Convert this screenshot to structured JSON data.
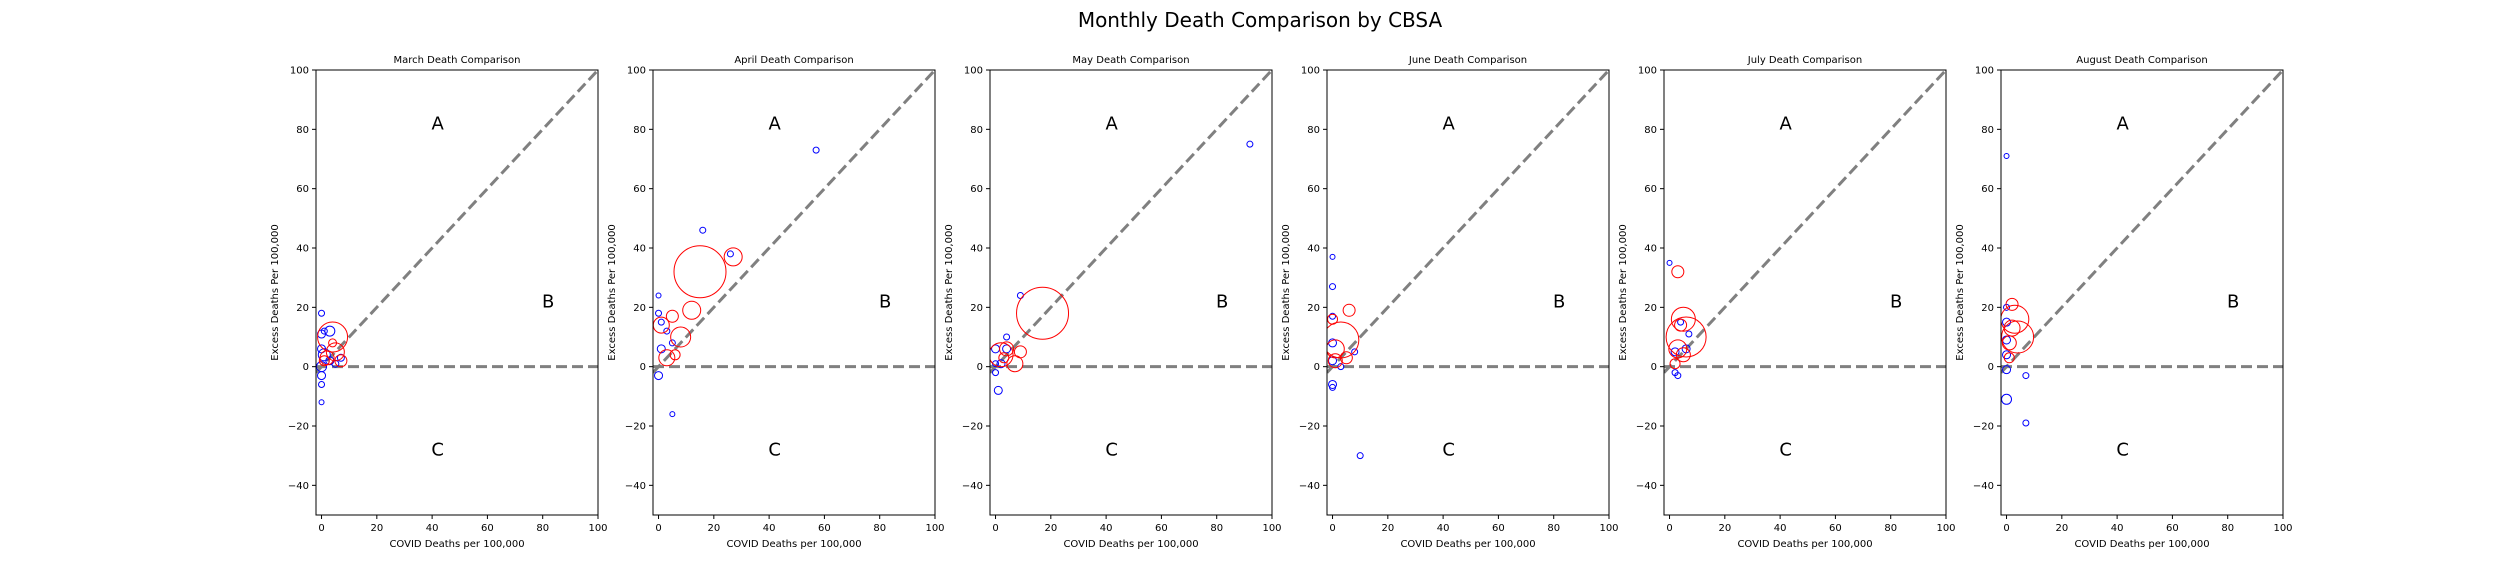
{
  "figure": {
    "suptitle": "Monthly Death Comparison by CBSA"
  },
  "chart_data": [
    {
      "type": "scatter",
      "title": "March Death Comparison",
      "xlabel": "COVID Deaths per 100,000",
      "ylabel": "Excess Deaths Per 100,000",
      "xlim": [
        -2,
        100
      ],
      "ylim": [
        -50,
        100
      ],
      "xticks": [
        0,
        20,
        40,
        60,
        80,
        100
      ],
      "yticks": [
        -40,
        -20,
        0,
        20,
        40,
        60,
        80,
        100
      ],
      "region_labels": [
        {
          "text": "A",
          "x": 42,
          "y": 82
        },
        {
          "text": "B",
          "x": 82,
          "y": 22
        },
        {
          "text": "C",
          "x": 42,
          "y": -28
        }
      ],
      "reference_lines": [
        "y = x",
        "y = 0"
      ],
      "grid": false,
      "points": [
        {
          "x": 0,
          "y": 18,
          "r": 3,
          "color": "blue"
        },
        {
          "x": 0,
          "y": 11,
          "r": 4,
          "color": "blue"
        },
        {
          "x": 1,
          "y": 12,
          "r": 3,
          "color": "blue"
        },
        {
          "x": 3,
          "y": 12,
          "r": 5,
          "color": "blue"
        },
        {
          "x": 0,
          "y": 6,
          "r": 4,
          "color": "blue"
        },
        {
          "x": 1,
          "y": 4,
          "r": 6,
          "color": "blue"
        },
        {
          "x": 0,
          "y": 0,
          "r": 5,
          "color": "blue"
        },
        {
          "x": 0,
          "y": -3,
          "r": 4,
          "color": "blue"
        },
        {
          "x": 0,
          "y": -6,
          "r": 3,
          "color": "blue"
        },
        {
          "x": 0,
          "y": -12,
          "r": 2.5,
          "color": "blue"
        },
        {
          "x": 3,
          "y": 2,
          "r": 4,
          "color": "blue"
        },
        {
          "x": 5,
          "y": 1,
          "r": 3.5,
          "color": "blue"
        },
        {
          "x": 7,
          "y": 3,
          "r": 3.5,
          "color": "blue"
        },
        {
          "x": 4,
          "y": 8,
          "r": 4,
          "color": "red"
        },
        {
          "x": 2,
          "y": 3,
          "r": 7,
          "color": "red"
        },
        {
          "x": 5,
          "y": 5,
          "r": 9,
          "color": "red"
        },
        {
          "x": 1,
          "y": 2,
          "r": 5,
          "color": "red"
        },
        {
          "x": 4,
          "y": 10,
          "r": 15,
          "color": "red"
        },
        {
          "x": 7,
          "y": 2,
          "r": 6,
          "color": "red"
        }
      ]
    },
    {
      "type": "scatter",
      "title": "April Death Comparison",
      "xlabel": "COVID Deaths per 100,000",
      "ylabel": "Excess Deaths Per 100,000",
      "xlim": [
        -2,
        100
      ],
      "ylim": [
        -50,
        100
      ],
      "xticks": [
        0,
        20,
        40,
        60,
        80,
        100
      ],
      "yticks": [
        -40,
        -20,
        0,
        20,
        40,
        60,
        80,
        100
      ],
      "region_labels": [
        {
          "text": "A",
          "x": 42,
          "y": 82
        },
        {
          "text": "B",
          "x": 82,
          "y": 22
        },
        {
          "text": "C",
          "x": 42,
          "y": -28
        }
      ],
      "reference_lines": [
        "y = x",
        "y = 0"
      ],
      "grid": false,
      "points": [
        {
          "x": 57,
          "y": 73,
          "r": 3,
          "color": "blue"
        },
        {
          "x": 16,
          "y": 46,
          "r": 3,
          "color": "blue"
        },
        {
          "x": 0,
          "y": 24,
          "r": 2.5,
          "color": "blue"
        },
        {
          "x": 0,
          "y": 18,
          "r": 3,
          "color": "blue"
        },
        {
          "x": 1,
          "y": 15,
          "r": 3,
          "color": "blue"
        },
        {
          "x": 3,
          "y": 12,
          "r": 3,
          "color": "blue"
        },
        {
          "x": 1,
          "y": 6,
          "r": 4,
          "color": "blue"
        },
        {
          "x": 5,
          "y": 8,
          "r": 3,
          "color": "blue"
        },
        {
          "x": 0,
          "y": -3,
          "r": 4,
          "color": "blue"
        },
        {
          "x": 5,
          "y": -16,
          "r": 2.5,
          "color": "blue"
        },
        {
          "x": 26,
          "y": 38,
          "r": 3,
          "color": "blue"
        },
        {
          "x": 15,
          "y": 32,
          "r": 26,
          "color": "red"
        },
        {
          "x": 27,
          "y": 37,
          "r": 9,
          "color": "red"
        },
        {
          "x": 12,
          "y": 19,
          "r": 9,
          "color": "red"
        },
        {
          "x": 5,
          "y": 17,
          "r": 6,
          "color": "red"
        },
        {
          "x": 8,
          "y": 10,
          "r": 10,
          "color": "red"
        },
        {
          "x": 3,
          "y": 3,
          "r": 8,
          "color": "red"
        },
        {
          "x": 1,
          "y": 14,
          "r": 8,
          "color": "red"
        },
        {
          "x": 6,
          "y": 4,
          "r": 5,
          "color": "red"
        }
      ]
    },
    {
      "type": "scatter",
      "title": "May Death Comparison",
      "xlabel": "COVID Deaths per 100,000",
      "ylabel": "Excess Deaths Per 100,000",
      "xlim": [
        -2,
        100
      ],
      "ylim": [
        -50,
        100
      ],
      "xticks": [
        0,
        20,
        40,
        60,
        80,
        100
      ],
      "yticks": [
        -40,
        -20,
        0,
        20,
        40,
        60,
        80,
        100
      ],
      "region_labels": [
        {
          "text": "A",
          "x": 42,
          "y": 82
        },
        {
          "text": "B",
          "x": 82,
          "y": 22
        },
        {
          "text": "C",
          "x": 42,
          "y": -28
        }
      ],
      "reference_lines": [
        "y = x",
        "y = 0"
      ],
      "grid": false,
      "points": [
        {
          "x": 92,
          "y": 75,
          "r": 3,
          "color": "blue"
        },
        {
          "x": 9,
          "y": 24,
          "r": 3,
          "color": "blue"
        },
        {
          "x": 0,
          "y": 6,
          "r": 4,
          "color": "blue"
        },
        {
          "x": 2,
          "y": 1,
          "r": 4,
          "color": "blue"
        },
        {
          "x": 0,
          "y": -2,
          "r": 3,
          "color": "blue"
        },
        {
          "x": 1,
          "y": -8,
          "r": 4,
          "color": "blue"
        },
        {
          "x": 4,
          "y": 6,
          "r": 4,
          "color": "blue"
        },
        {
          "x": 4,
          "y": 10,
          "r": 3,
          "color": "blue"
        },
        {
          "x": 0,
          "y": 1,
          "r": 3,
          "color": "blue"
        },
        {
          "x": 17,
          "y": 18,
          "r": 26,
          "color": "red"
        },
        {
          "x": 2,
          "y": 4,
          "r": 12,
          "color": "red"
        },
        {
          "x": 7,
          "y": 1,
          "r": 8,
          "color": "red"
        },
        {
          "x": 4,
          "y": 6,
          "r": 7,
          "color": "red"
        },
        {
          "x": 9,
          "y": 5,
          "r": 6,
          "color": "red"
        },
        {
          "x": 3,
          "y": 3,
          "r": 5,
          "color": "red"
        }
      ]
    },
    {
      "type": "scatter",
      "title": "June Death Comparison",
      "xlabel": "COVID Deaths per 100,000",
      "ylabel": "Excess Deaths Per 100,000",
      "xlim": [
        -2,
        100
      ],
      "ylim": [
        -50,
        100
      ],
      "xticks": [
        0,
        20,
        40,
        60,
        80,
        100
      ],
      "yticks": [
        -40,
        -20,
        0,
        20,
        40,
        60,
        80,
        100
      ],
      "region_labels": [
        {
          "text": "A",
          "x": 42,
          "y": 82
        },
        {
          "text": "B",
          "x": 82,
          "y": 22
        },
        {
          "text": "C",
          "x": 42,
          "y": -28
        }
      ],
      "reference_lines": [
        "y = x",
        "y = 0"
      ],
      "grid": false,
      "points": [
        {
          "x": 0,
          "y": 37,
          "r": 2.5,
          "color": "blue"
        },
        {
          "x": 0,
          "y": 27,
          "r": 3,
          "color": "blue"
        },
        {
          "x": 0,
          "y": 17,
          "r": 3,
          "color": "blue"
        },
        {
          "x": 0,
          "y": 8,
          "r": 4,
          "color": "blue"
        },
        {
          "x": 0,
          "y": 2,
          "r": 4,
          "color": "blue"
        },
        {
          "x": 0,
          "y": -6,
          "r": 4,
          "color": "blue"
        },
        {
          "x": 0,
          "y": -7,
          "r": 3,
          "color": "blue"
        },
        {
          "x": 8,
          "y": 5,
          "r": 3,
          "color": "blue"
        },
        {
          "x": 10,
          "y": -30,
          "r": 3,
          "color": "blue"
        },
        {
          "x": 3,
          "y": 0,
          "r": 3,
          "color": "blue"
        },
        {
          "x": 6,
          "y": 19,
          "r": 6,
          "color": "red"
        },
        {
          "x": 0,
          "y": 16,
          "r": 5,
          "color": "red"
        },
        {
          "x": 3,
          "y": 9,
          "r": 18,
          "color": "red"
        },
        {
          "x": 1,
          "y": 6,
          "r": 9,
          "color": "red"
        },
        {
          "x": 1,
          "y": 2,
          "r": 7,
          "color": "red"
        },
        {
          "x": 5,
          "y": 3,
          "r": 6,
          "color": "red"
        }
      ]
    },
    {
      "type": "scatter",
      "title": "July Death Comparison",
      "xlabel": "COVID Deaths per 100,000",
      "ylabel": "Excess Deaths Per 100,000",
      "xlim": [
        -2,
        100
      ],
      "ylim": [
        -50,
        100
      ],
      "xticks": [
        0,
        20,
        40,
        60,
        80,
        100
      ],
      "yticks": [
        -40,
        -20,
        0,
        20,
        40,
        60,
        80,
        100
      ],
      "region_labels": [
        {
          "text": "A",
          "x": 42,
          "y": 82
        },
        {
          "text": "B",
          "x": 82,
          "y": 22
        },
        {
          "text": "C",
          "x": 42,
          "y": -28
        }
      ],
      "reference_lines": [
        "y = x",
        "y = 0"
      ],
      "grid": false,
      "points": [
        {
          "x": 0,
          "y": 35,
          "r": 2.5,
          "color": "blue"
        },
        {
          "x": 4,
          "y": 15,
          "r": 3,
          "color": "blue"
        },
        {
          "x": 2,
          "y": 5,
          "r": 4,
          "color": "blue"
        },
        {
          "x": 6,
          "y": 6,
          "r": 4,
          "color": "blue"
        },
        {
          "x": 2,
          "y": -2,
          "r": 3,
          "color": "blue"
        },
        {
          "x": 3,
          "y": -3,
          "r": 3,
          "color": "blue"
        },
        {
          "x": 7,
          "y": 11,
          "r": 3,
          "color": "blue"
        },
        {
          "x": 3,
          "y": 32,
          "r": 6,
          "color": "red"
        },
        {
          "x": 5,
          "y": 16,
          "r": 12,
          "color": "red"
        },
        {
          "x": 4,
          "y": 14,
          "r": 6,
          "color": "red"
        },
        {
          "x": 6,
          "y": 10,
          "r": 20,
          "color": "red"
        },
        {
          "x": 3,
          "y": 6,
          "r": 9,
          "color": "red"
        },
        {
          "x": 5,
          "y": 4,
          "r": 7,
          "color": "red"
        },
        {
          "x": 2,
          "y": 1,
          "r": 5,
          "color": "red"
        }
      ]
    },
    {
      "type": "scatter",
      "title": "August Death Comparison",
      "xlabel": "COVID Deaths per 100,000",
      "ylabel": "Excess Deaths Per 100,000",
      "xlim": [
        -2,
        100
      ],
      "ylim": [
        -50,
        100
      ],
      "xticks": [
        0,
        20,
        40,
        60,
        80,
        100
      ],
      "yticks": [
        -40,
        -20,
        0,
        20,
        40,
        60,
        80,
        100
      ],
      "region_labels": [
        {
          "text": "A",
          "x": 42,
          "y": 82
        },
        {
          "text": "B",
          "x": 82,
          "y": 22
        },
        {
          "text": "C",
          "x": 42,
          "y": -28
        }
      ],
      "reference_lines": [
        "y = x",
        "y = 0"
      ],
      "grid": false,
      "points": [
        {
          "x": 0,
          "y": 71,
          "r": 2.5,
          "color": "blue"
        },
        {
          "x": 0,
          "y": 20,
          "r": 3,
          "color": "blue"
        },
        {
          "x": 0,
          "y": 15,
          "r": 4,
          "color": "blue"
        },
        {
          "x": 0,
          "y": 9,
          "r": 4,
          "color": "blue"
        },
        {
          "x": 0,
          "y": 4,
          "r": 4,
          "color": "blue"
        },
        {
          "x": 0,
          "y": -1,
          "r": 4,
          "color": "blue"
        },
        {
          "x": 0,
          "y": -11,
          "r": 5,
          "color": "blue"
        },
        {
          "x": 7,
          "y": -3,
          "r": 3,
          "color": "blue"
        },
        {
          "x": 7,
          "y": -19,
          "r": 3,
          "color": "blue"
        },
        {
          "x": 2,
          "y": 21,
          "r": 6,
          "color": "red"
        },
        {
          "x": 3,
          "y": 16,
          "r": 14,
          "color": "red"
        },
        {
          "x": 2,
          "y": 13,
          "r": 8,
          "color": "red"
        },
        {
          "x": 4,
          "y": 10,
          "r": 16,
          "color": "red"
        },
        {
          "x": 1,
          "y": 8,
          "r": 7,
          "color": "red"
        },
        {
          "x": 1,
          "y": 3,
          "r": 5,
          "color": "red"
        }
      ]
    }
  ],
  "colors": {
    "blue": "#0000ff",
    "red": "#ff0000",
    "reference_line": "#808080",
    "axis": "#000000"
  }
}
